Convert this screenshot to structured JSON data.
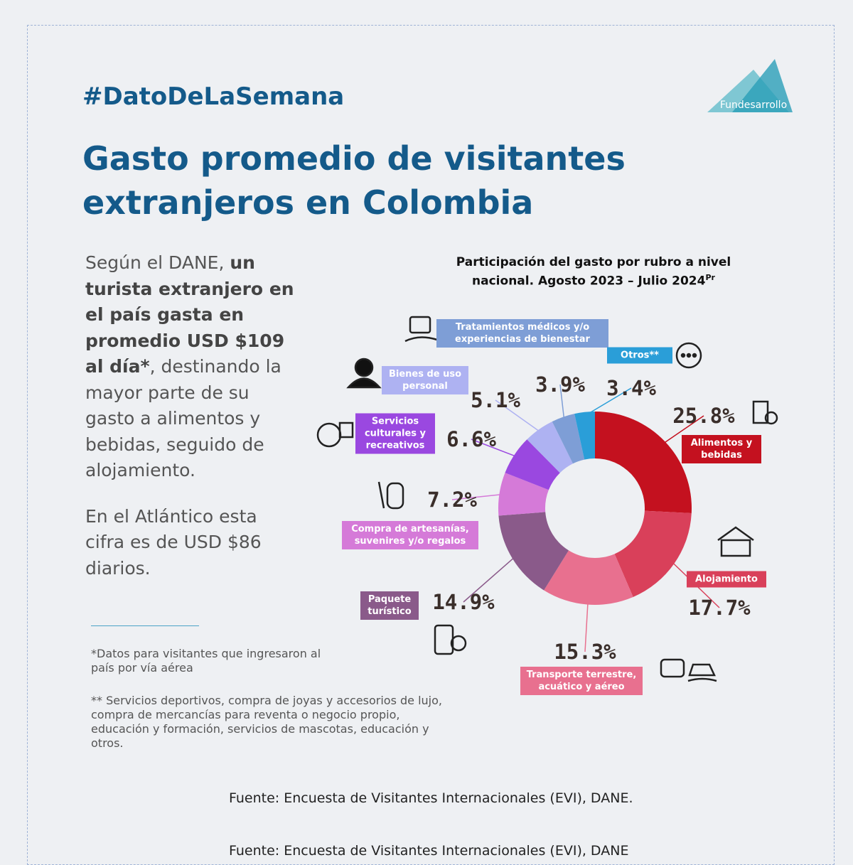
{
  "header": {
    "hashtag": "#DatoDeLaSemana",
    "title_line_1": "Gasto promedio de visitantes",
    "title_line_2": "extranjeros en Colombia"
  },
  "logo": {
    "text": "Fundesarrollo"
  },
  "body": {
    "paragraph_1": [
      "Según el DANE, ",
      "un turista extranjero en el país gasta en promedio USD $109 al día*",
      ", destinando la mayor parte de su gasto a alimentos y bebidas, seguido de alojamiento."
    ],
    "paragraph_2": "En el Atlántico esta cifra es de USD $86 diarios.",
    "footnote_1": "*Datos para visitantes que ingresaron al país por vía aérea",
    "footnote_2": "** Servicios deportivos, compra de joyas y accesorios de lujo, compra de mercancías para reventa o negocio propio, educación y formación, servicios de mascotas, educación y otros."
  },
  "source": "Fuente: Encuesta de Visitantes Internacionales (EVI), DANE.",
  "source_ghost": "Fuente: Encuesta de Visitantes Internacionales (EVI), DANE",
  "chart_data": {
    "type": "donut",
    "title": "Participación del gasto por rubro a nivel nacional.  Agosto 2023 – Julio 2024",
    "title_superscript": "Pr",
    "categories": [
      "Alimentos y bebidas",
      "Alojamiento",
      "Transporte terrestre, acuático y aéreo",
      "Paquete turístico",
      "Compra de artesanías, suvenires y/o regalos",
      "Servicios culturales y recreativos",
      "Bienes de uso personal",
      "Tratamientos médicos y/o experiencias de bienestar",
      "Otros**"
    ],
    "values": [
      25.8,
      17.7,
      15.3,
      14.9,
      7.2,
      6.6,
      5.1,
      3.9,
      3.4
    ],
    "value_labels": [
      "25.8%",
      "17.7%",
      "15.3%",
      "14.9%",
      "7.2%",
      "6.6%",
      "5.1%",
      "3.9%",
      "3.4%"
    ],
    "colors": [
      "#c4111f",
      "#d9405a",
      "#e8708f",
      "#8a5a8a",
      "#d57ad8",
      "#9a48e0",
      "#aeb2f2",
      "#7e9ed6",
      "#2a9ed8"
    ]
  }
}
